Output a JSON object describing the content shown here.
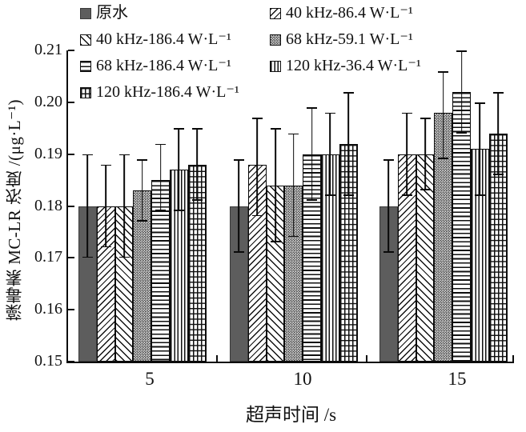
{
  "chart_data": {
    "type": "bar",
    "title": "",
    "xlabel": "超声时间 /s",
    "ylabel": "藻毒素 MC-LR 浓度 /(μg·L⁻¹)",
    "categories": [
      "5",
      "10",
      "15"
    ],
    "ylim": [
      0.15,
      0.21
    ],
    "ytick_labels": [
      "0.15",
      "0.16",
      "0.17",
      "0.18",
      "0.19",
      "0.20",
      "0.21"
    ],
    "grid": false,
    "legend_position": "top-inside",
    "error_bars": true,
    "colors": {
      "ink": "#0c0c0c",
      "raw_water_fill": "#5d5d5d",
      "background": "#ffffff"
    },
    "series": [
      {
        "name": "原水",
        "pattern": "solid",
        "values": [
          0.18,
          0.18,
          0.18
        ],
        "err_low": [
          0.17,
          0.171,
          0.171
        ],
        "err_high": [
          0.19,
          0.189,
          0.189
        ]
      },
      {
        "name": "40 kHz-86.4 W·L⁻¹",
        "pattern": "diag-forward",
        "values": [
          0.18,
          0.188,
          0.19
        ],
        "err_low": [
          0.172,
          0.178,
          0.182
        ],
        "err_high": [
          0.188,
          0.197,
          0.198
        ]
      },
      {
        "name": "40 kHz-186.4 W·L⁻¹",
        "pattern": "diag-back",
        "values": [
          0.18,
          0.184,
          0.19
        ],
        "err_low": [
          0.17,
          0.173,
          0.183
        ],
        "err_high": [
          0.19,
          0.195,
          0.197
        ]
      },
      {
        "name": "68 kHz-59.1 W·L⁻¹",
        "pattern": "dots",
        "values": [
          0.183,
          0.184,
          0.198
        ],
        "err_low": [
          0.177,
          0.174,
          0.189
        ],
        "err_high": [
          0.189,
          0.194,
          0.206
        ]
      },
      {
        "name": "68 kHz-186.4 W·L⁻¹",
        "pattern": "hlines",
        "values": [
          0.185,
          0.19,
          0.202
        ],
        "err_low": [
          0.179,
          0.181,
          0.194
        ],
        "err_high": [
          0.192,
          0.199,
          0.21
        ]
      },
      {
        "name": "120 kHz-36.4 W·L⁻¹",
        "pattern": "vlines",
        "values": [
          0.187,
          0.19,
          0.191
        ],
        "err_low": [
          0.179,
          0.182,
          0.182
        ],
        "err_high": [
          0.195,
          0.198,
          0.2
        ]
      },
      {
        "name": "120 kHz-186.4 W·L⁻¹",
        "pattern": "brick",
        "values": [
          0.188,
          0.192,
          0.194
        ],
        "err_low": [
          0.181,
          0.182,
          0.186
        ],
        "err_high": [
          0.195,
          0.202,
          0.202
        ]
      }
    ]
  }
}
